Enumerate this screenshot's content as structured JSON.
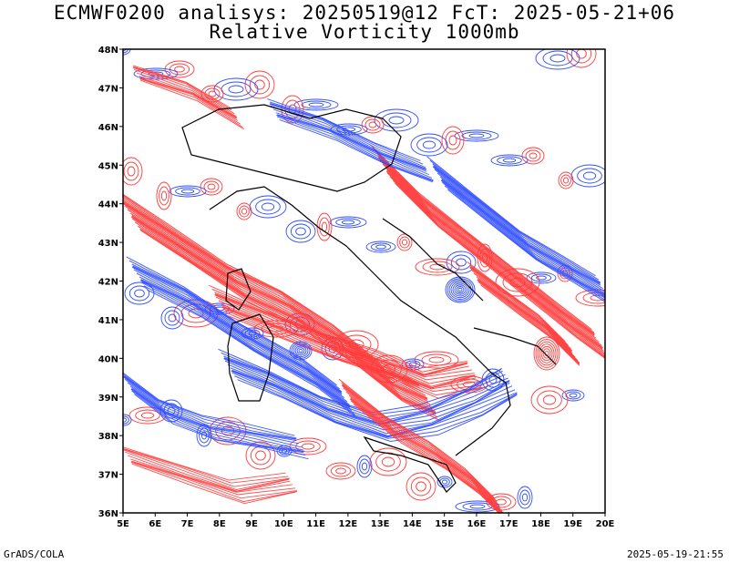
{
  "title": "ECMWF0200 analisys: 20250519@12 FcT: 2025-05-21+06",
  "subtitle": "Relative Vorticity 1000mb",
  "footer_left": "GrADS/COLA",
  "footer_right": "2025-05-19-21:55",
  "colors": {
    "positive": "#ff3b3b",
    "negative": "#2f4dff",
    "coast": "#000000"
  },
  "axes": {
    "lon_range": [
      5,
      20
    ],
    "lat_range": [
      36,
      48
    ],
    "lon_labels": [
      "5E",
      "6E",
      "7E",
      "8E",
      "9E",
      "10E",
      "11E",
      "12E",
      "13E",
      "14E",
      "15E",
      "16E",
      "17E",
      "18E",
      "19E",
      "20E"
    ],
    "lat_labels": [
      "36N",
      "37N",
      "38N",
      "39N",
      "40N",
      "41N",
      "42N",
      "43N",
      "44N",
      "45N",
      "46N",
      "47N",
      "48N"
    ]
  }
}
